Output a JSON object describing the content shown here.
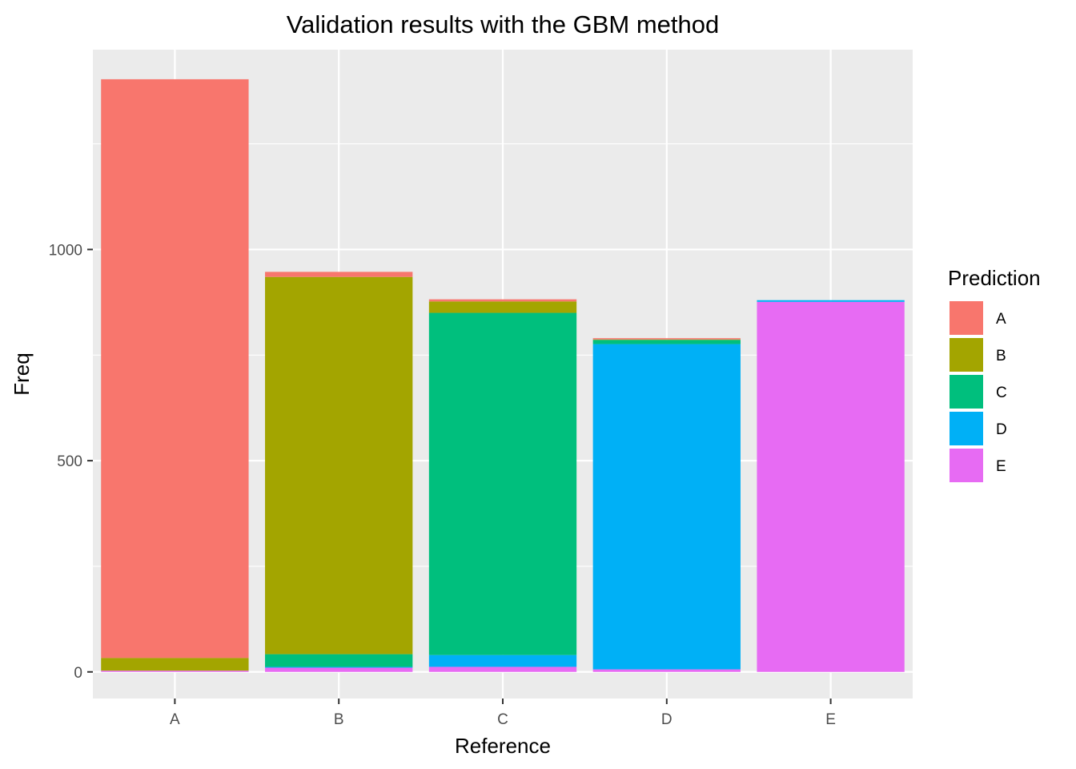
{
  "chart_data": {
    "type": "bar",
    "stacked": true,
    "title": "Validation results with the GBM method",
    "xlabel": "Reference",
    "ylabel": "Freq",
    "categories": [
      "A",
      "B",
      "C",
      "D",
      "E"
    ],
    "ylim": [
      -63,
      1473
    ],
    "yticks": [
      0,
      500,
      1000
    ],
    "y_tick_labels": [
      "0",
      "500",
      "1000"
    ],
    "grid": true,
    "legend": {
      "title": "Prediction",
      "position": "right"
    },
    "series": [
      {
        "name": "A",
        "color": "#F8766D",
        "values": [
          1370,
          12,
          5,
          3,
          0
        ]
      },
      {
        "name": "B",
        "color": "#A3A500",
        "values": [
          30,
          893,
          27,
          1,
          0
        ]
      },
      {
        "name": "C",
        "color": "#00BF7D",
        "values": [
          0,
          30,
          810,
          10,
          0
        ]
      },
      {
        "name": "D",
        "color": "#00B0F6",
        "values": [
          0,
          2,
          28,
          770,
          4
        ]
      },
      {
        "name": "E",
        "color": "#E76BF3",
        "values": [
          3,
          10,
          12,
          6,
          876
        ]
      }
    ]
  }
}
